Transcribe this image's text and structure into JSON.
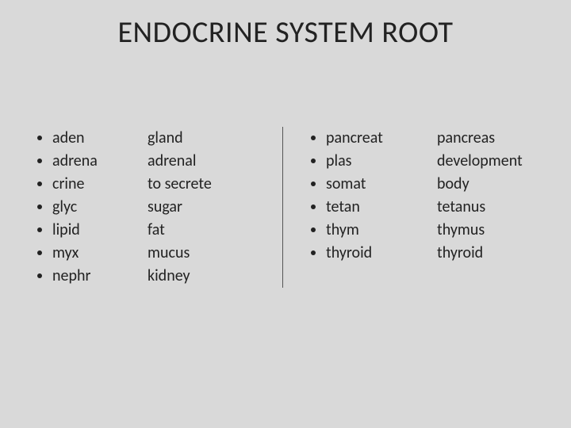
{
  "title": "ENDOCRINE SYSTEM ROOT",
  "colors": {
    "background": "#d9d9d9",
    "text": "#222222",
    "divider": "#555555"
  },
  "typography": {
    "title_fontsize": 38,
    "body_fontsize": 20,
    "line_height": 1.45,
    "font_family": "Calibri"
  },
  "left": {
    "roots": [
      "aden",
      "adrena",
      "crine",
      "glyc",
      "lipid",
      "myx",
      "nephr"
    ],
    "defs": [
      "gland",
      "adrenal",
      "to secrete",
      "sugar",
      "fat",
      "mucus",
      "kidney"
    ]
  },
  "right": {
    "roots": [
      "pancreat",
      "plas",
      "somat",
      "tetan",
      "thym",
      "thyroid"
    ],
    "defs": [
      "pancreas",
      "development",
      "body",
      "tetanus",
      "thymus",
      "thyroid"
    ]
  }
}
